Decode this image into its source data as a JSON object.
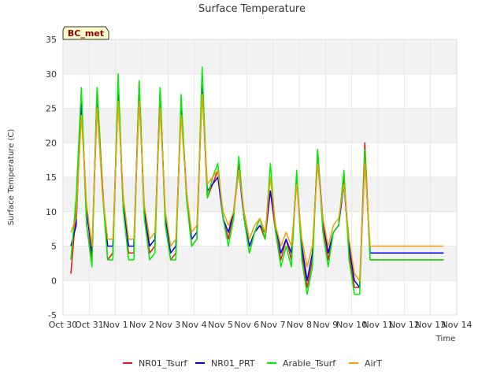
{
  "chart_data": {
    "type": "line",
    "title": "Surface Temperature",
    "xlabel": "Time",
    "ylabel": "Surface Temperature (C)",
    "site_badge": "BC_met",
    "x_ticks": [
      "Oct 30",
      "Oct 31",
      "Nov 1",
      "Nov 2",
      "Nov 3",
      "Nov 4",
      "Nov 5",
      "Nov 6",
      "Nov 7",
      "Nov 8",
      "Nov 9",
      "Nov 10",
      "Nov 11",
      "Nov 12",
      "Nov 13",
      "Nov 14"
    ],
    "xlim_days": [
      0,
      15
    ],
    "ylim": [
      -5,
      35
    ],
    "y_ticks": [
      -5,
      0,
      5,
      10,
      15,
      20,
      25,
      30,
      35
    ],
    "grid": true,
    "legend_position": "bottom",
    "x_day_index": [
      0.3,
      0.5,
      0.7,
      0.9,
      1.1,
      1.3,
      1.5,
      1.7,
      1.9,
      2.1,
      2.3,
      2.5,
      2.7,
      2.9,
      3.1,
      3.3,
      3.5,
      3.7,
      3.9,
      4.1,
      4.3,
      4.5,
      4.7,
      4.9,
      5.1,
      5.3,
      5.5,
      5.7,
      5.9,
      6.1,
      6.3,
      6.5,
      6.7,
      6.9,
      7.1,
      7.3,
      7.5,
      7.7,
      7.9,
      8.1,
      8.3,
      8.5,
      8.7,
      8.9,
      9.1,
      9.3,
      9.5,
      9.7,
      9.9,
      10.1,
      10.3,
      10.5,
      10.7,
      10.9,
      11.1,
      11.3,
      11.5,
      11.7,
      11.9,
      12.1,
      12.3,
      12.5,
      12.7,
      12.9,
      13.1,
      13.3,
      13.5,
      13.7,
      13.9,
      14.1,
      14.3,
      14.5
    ],
    "series": [
      {
        "name": "NR01_Tsurf",
        "color": "#e31a1c",
        "values": [
          1,
          10,
          27,
          8,
          3,
          28,
          14,
          3,
          4,
          28,
          10,
          4,
          4,
          29,
          9,
          4,
          5,
          28,
          8,
          3,
          4,
          26,
          13,
          5,
          6,
          29,
          12,
          14,
          16,
          9,
          6,
          10,
          17,
          9,
          4,
          7,
          8,
          6,
          13,
          7,
          3,
          6,
          3,
          15,
          4,
          -1,
          3,
          19,
          8,
          3,
          7,
          8,
          15,
          4,
          -1,
          -1,
          20,
          3,
          3,
          3,
          3,
          3,
          3,
          3,
          3,
          3,
          3,
          3,
          3,
          3,
          3,
          3
        ]
      },
      {
        "name": "NR01_PRT",
        "color": "#0000ee",
        "values": [
          5,
          8,
          26,
          10,
          4,
          26,
          13,
          5,
          5,
          27,
          11,
          5,
          5,
          28,
          10,
          5,
          6,
          27,
          9,
          4,
          5,
          25,
          13,
          6,
          7,
          28,
          13,
          14,
          15,
          9,
          7,
          10,
          16,
          9,
          5,
          7,
          8,
          7,
          13,
          8,
          4,
          6,
          4,
          15,
          5,
          0,
          4,
          18,
          9,
          4,
          7,
          8,
          14,
          5,
          0,
          -1,
          18,
          4,
          4,
          4,
          4,
          4,
          4,
          4,
          4,
          4,
          4,
          4,
          4,
          4,
          4,
          4
        ]
      },
      {
        "name": "Arable_Tsurf",
        "color": "#00ee00",
        "values": [
          3,
          12,
          28,
          8,
          2,
          28,
          13,
          3,
          3,
          30,
          10,
          3,
          3,
          29,
          9,
          3,
          4,
          28,
          8,
          3,
          3,
          27,
          12,
          5,
          6,
          31,
          12,
          15,
          17,
          9,
          5,
          9,
          18,
          9,
          4,
          7,
          9,
          6,
          17,
          7,
          2,
          5,
          2,
          16,
          3,
          -2,
          2,
          19,
          7,
          2,
          7,
          8,
          16,
          3,
          -2,
          -2,
          19,
          3,
          3,
          3,
          3,
          3,
          3,
          3,
          3,
          3,
          3,
          3,
          3,
          3,
          3,
          3
        ]
      },
      {
        "name": "AirT",
        "color": "#f0a000",
        "values": [
          7,
          9,
          24,
          11,
          5,
          25,
          13,
          6,
          6,
          26,
          12,
          6,
          6,
          26,
          11,
          6,
          7,
          25,
          10,
          5,
          6,
          24,
          13,
          7,
          8,
          27,
          14,
          15,
          16,
          10,
          8,
          10,
          16,
          10,
          6,
          8,
          9,
          7,
          15,
          8,
          5,
          7,
          5,
          14,
          6,
          2,
          5,
          17,
          9,
          5,
          8,
          9,
          14,
          6,
          1,
          0,
          17,
          5,
          5,
          5,
          5,
          5,
          5,
          5,
          5,
          5,
          5,
          5,
          5,
          5,
          5,
          5
        ]
      }
    ]
  }
}
